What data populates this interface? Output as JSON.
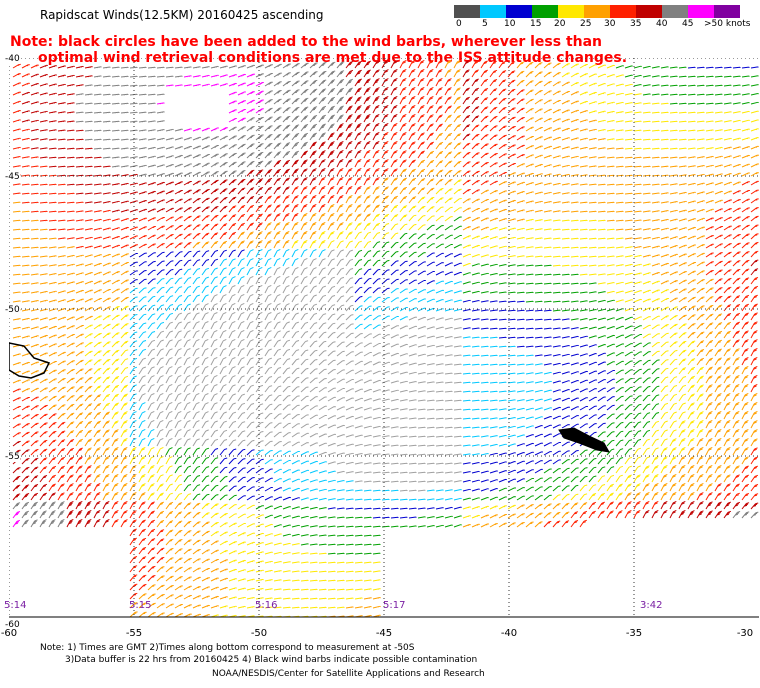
{
  "title": "Rapidscat Winds(12.5KM) 20160425 ascending",
  "note": {
    "line1": "Note: black circles have been added to the wind barbs, wherever less than",
    "line2": "optimal wind retrieval conditions are met due to the ISS attitude changes."
  },
  "scale": {
    "labels": [
      "0",
      "5",
      "10",
      "15",
      "20",
      "25",
      "30",
      "35",
      "40",
      "45",
      ">50 knots"
    ],
    "colors": [
      "#505050",
      "#a0a0a0",
      "#00c8ff",
      "#0000d0",
      "#00a000",
      "#ffe800",
      "#ffa000",
      "#ff2000",
      "#c00000",
      "#808080",
      "#ff00ff",
      "#8000a0"
    ]
  },
  "y_labels": [
    "-40",
    "-45",
    "-50",
    "-55",
    "-60"
  ],
  "x_labels": [
    "-60",
    "-55",
    "-50",
    "-45",
    "-40",
    "-35",
    "-30"
  ],
  "times": [
    "5:14",
    "5:15",
    "5:16",
    "5:17",
    "3:42"
  ],
  "footnote": {
    "line1": "Note: 1) Times are GMT 2)Times along bottom correspond to measurement at -50S",
    "line2": "3)Data buffer is 22 hrs from 20160425 4) Black wind barbs indicate possible contamination",
    "credit": "NOAA/NESDIS/Center for Satellite Applications and Research"
  }
}
